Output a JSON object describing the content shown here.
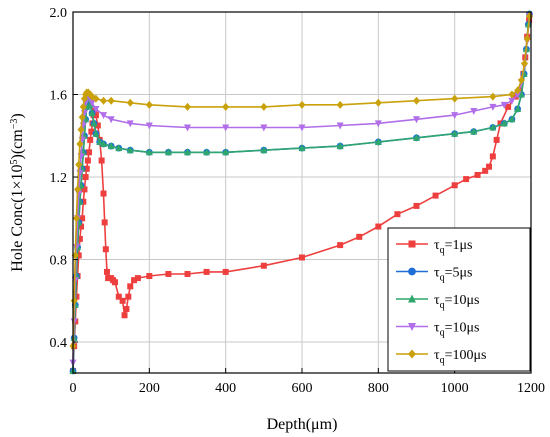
{
  "chart_data": {
    "type": "line",
    "title": "",
    "xlabel": "Depth(μm)",
    "ylabel_parts": {
      "prefix": "Hole Conc(1×10",
      "exp": "5",
      "mid": ")(cm",
      "unit_exp": "−3",
      "suffix": ")"
    },
    "xlim": [
      0,
      1200
    ],
    "ylim": [
      0.25,
      2.0
    ],
    "xticks": [
      0,
      200,
      400,
      600,
      800,
      1000,
      1200
    ],
    "xtick_labels": [
      "0",
      "200",
      "400",
      "600",
      "800",
      "1000",
      "1200"
    ],
    "yticks": [
      0.4,
      0.8,
      1.2,
      1.6,
      2.0
    ],
    "ytick_labels": [
      "0.4",
      "0.8",
      "1.2",
      "1.6",
      "2.0"
    ],
    "grid": true,
    "legend_position": "bottom-right",
    "series": [
      {
        "name": "1μs",
        "legend_label": {
          "symbol": "τ",
          "sub": "q",
          "value": "=1μs"
        },
        "color": "#ee3f3f",
        "marker": "square",
        "points": [
          [
            0,
            0.26
          ],
          [
            3,
            0.38
          ],
          [
            6,
            0.5
          ],
          [
            9,
            0.62
          ],
          [
            12,
            0.72
          ],
          [
            15,
            0.82
          ],
          [
            18,
            0.9
          ],
          [
            21,
            0.96
          ],
          [
            24,
            1.0
          ],
          [
            27,
            1.08
          ],
          [
            30,
            1.14
          ],
          [
            33,
            1.2
          ],
          [
            36,
            1.24
          ],
          [
            39,
            1.28
          ],
          [
            42,
            1.32
          ],
          [
            45,
            1.38
          ],
          [
            48,
            1.42
          ],
          [
            51,
            1.46
          ],
          [
            54,
            1.5
          ],
          [
            57,
            1.52
          ],
          [
            60,
            1.5
          ],
          [
            65,
            1.45
          ],
          [
            70,
            1.38
          ],
          [
            75,
            1.28
          ],
          [
            80,
            1.12
          ],
          [
            83,
            0.98
          ],
          [
            86,
            0.85
          ],
          [
            89,
            0.74
          ],
          [
            92,
            0.71
          ],
          [
            100,
            0.71
          ],
          [
            105,
            0.7
          ],
          [
            110,
            0.69
          ],
          [
            120,
            0.62
          ],
          [
            130,
            0.6
          ],
          [
            135,
            0.53
          ],
          [
            140,
            0.56
          ],
          [
            145,
            0.62
          ],
          [
            150,
            0.67
          ],
          [
            160,
            0.7
          ],
          [
            170,
            0.71
          ],
          [
            200,
            0.72
          ],
          [
            250,
            0.73
          ],
          [
            300,
            0.73
          ],
          [
            350,
            0.74
          ],
          [
            400,
            0.74
          ],
          [
            500,
            0.77
          ],
          [
            600,
            0.81
          ],
          [
            700,
            0.87
          ],
          [
            750,
            0.91
          ],
          [
            800,
            0.96
          ],
          [
            850,
            1.02
          ],
          [
            900,
            1.06
          ],
          [
            950,
            1.11
          ],
          [
            1000,
            1.16
          ],
          [
            1030,
            1.19
          ],
          [
            1060,
            1.21
          ],
          [
            1080,
            1.23
          ],
          [
            1090,
            1.25
          ],
          [
            1100,
            1.3
          ],
          [
            1110,
            1.38
          ],
          [
            1120,
            1.46
          ],
          [
            1140,
            1.54
          ],
          [
            1160,
            1.59
          ],
          [
            1170,
            1.62
          ],
          [
            1180,
            1.7
          ],
          [
            1185,
            1.78
          ],
          [
            1190,
            1.88
          ],
          [
            1195,
            1.96
          ]
        ]
      },
      {
        "name": "5μs",
        "legend_label": {
          "symbol": "τ",
          "sub": "q",
          "value": "=5μs"
        },
        "color": "#1d6fd6",
        "marker": "circle",
        "points": [
          [
            0,
            0.26
          ],
          [
            3,
            0.42
          ],
          [
            6,
            0.58
          ],
          [
            9,
            0.72
          ],
          [
            12,
            0.86
          ],
          [
            15,
            0.98
          ],
          [
            18,
            1.08
          ],
          [
            21,
            1.16
          ],
          [
            24,
            1.24
          ],
          [
            27,
            1.32
          ],
          [
            30,
            1.4
          ],
          [
            33,
            1.48
          ],
          [
            36,
            1.54
          ],
          [
            39,
            1.58
          ],
          [
            42,
            1.58
          ],
          [
            45,
            1.55
          ],
          [
            50,
            1.51
          ],
          [
            55,
            1.46
          ],
          [
            60,
            1.41
          ],
          [
            70,
            1.37
          ],
          [
            80,
            1.36
          ],
          [
            100,
            1.35
          ],
          [
            120,
            1.34
          ],
          [
            150,
            1.33
          ],
          [
            200,
            1.32
          ],
          [
            250,
            1.32
          ],
          [
            300,
            1.32
          ],
          [
            350,
            1.32
          ],
          [
            400,
            1.32
          ],
          [
            500,
            1.33
          ],
          [
            600,
            1.34
          ],
          [
            700,
            1.35
          ],
          [
            800,
            1.37
          ],
          [
            900,
            1.39
          ],
          [
            1000,
            1.41
          ],
          [
            1050,
            1.42
          ],
          [
            1100,
            1.44
          ],
          [
            1130,
            1.46
          ],
          [
            1150,
            1.48
          ],
          [
            1165,
            1.53
          ],
          [
            1175,
            1.6
          ],
          [
            1182,
            1.7
          ],
          [
            1188,
            1.82
          ],
          [
            1193,
            1.94
          ],
          [
            1196,
            1.99
          ]
        ]
      },
      {
        "name": "10μs",
        "legend_label": {
          "symbol": "τ",
          "sub": "q",
          "value": "=10μs"
        },
        "color": "#2fa66e",
        "marker": "triangle-up",
        "points": [
          [
            0,
            0.26
          ],
          [
            3,
            0.42
          ],
          [
            6,
            0.58
          ],
          [
            9,
            0.72
          ],
          [
            12,
            0.86
          ],
          [
            15,
            0.98
          ],
          [
            18,
            1.08
          ],
          [
            21,
            1.16
          ],
          [
            24,
            1.24
          ],
          [
            27,
            1.32
          ],
          [
            30,
            1.4
          ],
          [
            33,
            1.48
          ],
          [
            36,
            1.54
          ],
          [
            39,
            1.58
          ],
          [
            42,
            1.58
          ],
          [
            45,
            1.55
          ],
          [
            50,
            1.51
          ],
          [
            55,
            1.46
          ],
          [
            60,
            1.41
          ],
          [
            70,
            1.37
          ],
          [
            80,
            1.36
          ],
          [
            100,
            1.35
          ],
          [
            120,
            1.34
          ],
          [
            150,
            1.33
          ],
          [
            200,
            1.32
          ],
          [
            250,
            1.32
          ],
          [
            300,
            1.32
          ],
          [
            350,
            1.32
          ],
          [
            400,
            1.32
          ],
          [
            500,
            1.33
          ],
          [
            600,
            1.34
          ],
          [
            700,
            1.35
          ],
          [
            800,
            1.37
          ],
          [
            900,
            1.39
          ],
          [
            1000,
            1.41
          ],
          [
            1050,
            1.42
          ],
          [
            1100,
            1.44
          ],
          [
            1130,
            1.46
          ],
          [
            1150,
            1.48
          ],
          [
            1165,
            1.53
          ],
          [
            1175,
            1.6
          ],
          [
            1182,
            1.7
          ],
          [
            1188,
            1.82
          ],
          [
            1193,
            1.94
          ],
          [
            1196,
            1.99
          ]
        ]
      },
      {
        "name": "10μs",
        "legend_label": {
          "symbol": "τ",
          "sub": "q",
          "value": "=10μs"
        },
        "color": "#b06ee8",
        "marker": "triangle-down",
        "points": [
          [
            0,
            0.3
          ],
          [
            3,
            0.5
          ],
          [
            6,
            0.7
          ],
          [
            9,
            0.86
          ],
          [
            12,
            1.0
          ],
          [
            15,
            1.12
          ],
          [
            18,
            1.22
          ],
          [
            21,
            1.3
          ],
          [
            24,
            1.38
          ],
          [
            27,
            1.45
          ],
          [
            30,
            1.51
          ],
          [
            33,
            1.56
          ],
          [
            36,
            1.59
          ],
          [
            40,
            1.6
          ],
          [
            45,
            1.58
          ],
          [
            50,
            1.56
          ],
          [
            60,
            1.53
          ],
          [
            80,
            1.5
          ],
          [
            100,
            1.48
          ],
          [
            150,
            1.46
          ],
          [
            200,
            1.45
          ],
          [
            300,
            1.44
          ],
          [
            400,
            1.44
          ],
          [
            500,
            1.44
          ],
          [
            600,
            1.44
          ],
          [
            700,
            1.45
          ],
          [
            800,
            1.46
          ],
          [
            900,
            1.48
          ],
          [
            1000,
            1.5
          ],
          [
            1050,
            1.52
          ],
          [
            1100,
            1.54
          ],
          [
            1130,
            1.55
          ],
          [
            1150,
            1.57
          ],
          [
            1165,
            1.6
          ],
          [
            1175,
            1.66
          ],
          [
            1183,
            1.74
          ],
          [
            1190,
            1.86
          ],
          [
            1196,
            1.98
          ]
        ]
      },
      {
        "name": "100μs",
        "legend_label": {
          "symbol": "τ",
          "sub": "q",
          "value": "=100μs"
        },
        "color": "#c9a10a",
        "marker": "diamond",
        "points": [
          [
            0,
            0.38
          ],
          [
            3,
            0.6
          ],
          [
            6,
            0.82
          ],
          [
            9,
            1.0
          ],
          [
            12,
            1.14
          ],
          [
            15,
            1.26
          ],
          [
            18,
            1.36
          ],
          [
            21,
            1.43
          ],
          [
            24,
            1.49
          ],
          [
            27,
            1.54
          ],
          [
            30,
            1.58
          ],
          [
            33,
            1.6
          ],
          [
            36,
            1.61
          ],
          [
            40,
            1.61
          ],
          [
            45,
            1.6
          ],
          [
            50,
            1.59
          ],
          [
            60,
            1.58
          ],
          [
            80,
            1.57
          ],
          [
            100,
            1.57
          ],
          [
            150,
            1.56
          ],
          [
            200,
            1.55
          ],
          [
            300,
            1.54
          ],
          [
            400,
            1.54
          ],
          [
            500,
            1.54
          ],
          [
            600,
            1.55
          ],
          [
            700,
            1.55
          ],
          [
            800,
            1.56
          ],
          [
            900,
            1.57
          ],
          [
            1000,
            1.58
          ],
          [
            1100,
            1.59
          ],
          [
            1150,
            1.6
          ],
          [
            1165,
            1.62
          ],
          [
            1175,
            1.67
          ],
          [
            1183,
            1.75
          ],
          [
            1190,
            1.87
          ],
          [
            1196,
            1.98
          ]
        ]
      }
    ]
  }
}
